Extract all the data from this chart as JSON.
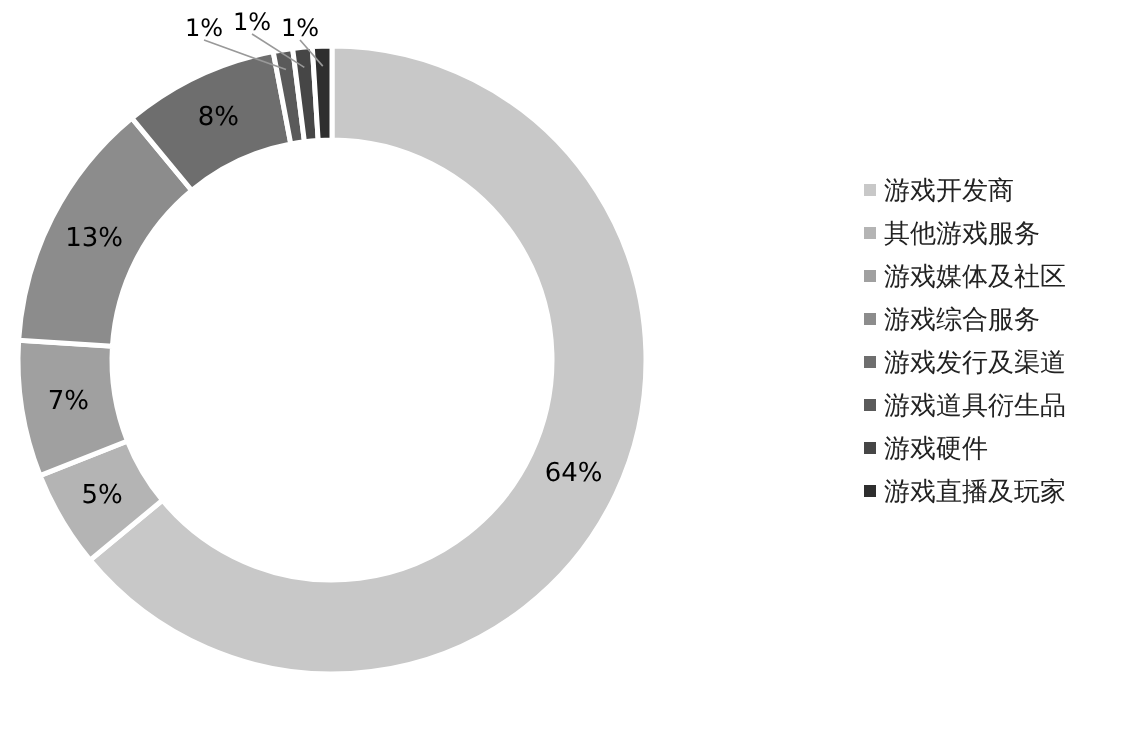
{
  "chart_data": {
    "type": "donut",
    "categories": [
      "游戏开发商",
      "其他游戏服务",
      "游戏媒体及社区",
      "游戏综合服务",
      "游戏发行及渠道",
      "游戏道具衍生品",
      "游戏硬件",
      "游戏直播及玩家"
    ],
    "values": [
      64,
      5,
      7,
      13,
      8,
      1,
      1,
      1
    ],
    "value_labels": [
      "64%",
      "5%",
      "7%",
      "13%",
      "8%",
      "1%",
      "1%",
      "1%"
    ],
    "colors": [
      "#c8c8c8",
      "#b4b4b4",
      "#a0a0a0",
      "#8c8c8c",
      "#6e6e6e",
      "#5a5a5a",
      "#464646",
      "#2e2e2e"
    ],
    "legend": "right"
  }
}
